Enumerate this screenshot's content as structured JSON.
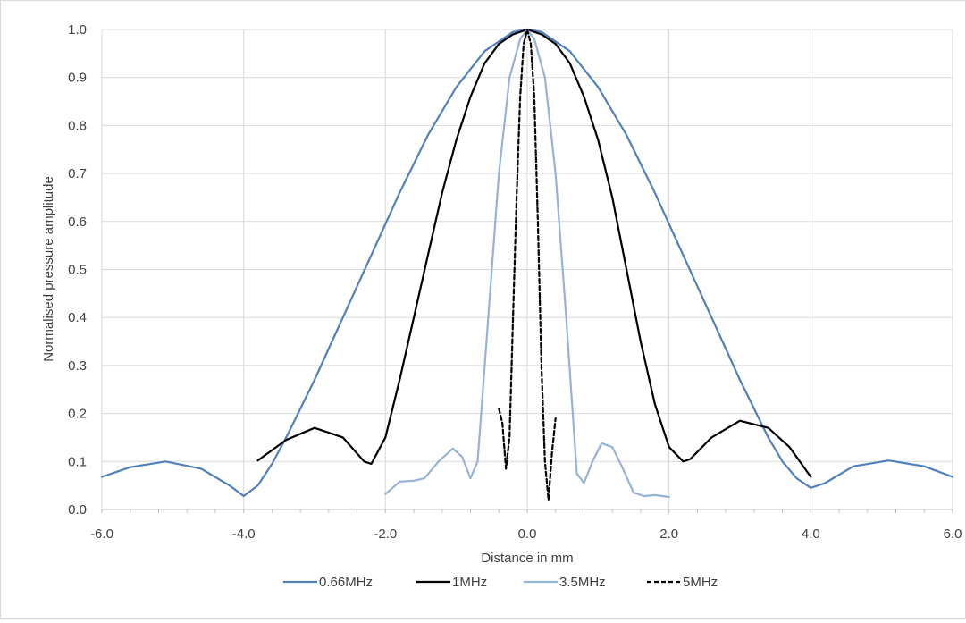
{
  "chart_data": {
    "type": "line",
    "title": "",
    "xlabel": "Distance in mm",
    "ylabel": "Normalised pressure amplitude",
    "xlim": [
      -6.0,
      6.0
    ],
    "ylim": [
      0.0,
      1.0
    ],
    "xticks": [
      "-6.0",
      "-4.0",
      "-2.0",
      "0.0",
      "2.0",
      "4.0",
      "6.0"
    ],
    "xtick_values": [
      -6,
      -4,
      -2,
      0,
      2,
      4,
      6
    ],
    "yticks": [
      "0.0",
      "0.1",
      "0.2",
      "0.3",
      "0.4",
      "0.5",
      "0.6",
      "0.7",
      "0.8",
      "0.9",
      "1.0"
    ],
    "ytick_values": [
      0,
      0.1,
      0.2,
      0.3,
      0.4,
      0.5,
      0.6,
      0.7,
      0.8,
      0.9,
      1.0
    ],
    "grid": true,
    "legend_position": "bottom",
    "series": [
      {
        "name": "0.66MHz",
        "color": "#4f81bd",
        "dash": "solid",
        "x": [
          -6.0,
          -5.6,
          -5.1,
          -4.6,
          -4.2,
          -4.0,
          -3.8,
          -3.6,
          -3.4,
          -3.0,
          -2.6,
          -2.2,
          -1.8,
          -1.4,
          -1.0,
          -0.6,
          -0.2,
          0.0,
          0.2,
          0.6,
          1.0,
          1.4,
          1.8,
          2.2,
          2.6,
          3.0,
          3.4,
          3.6,
          3.8,
          4.0,
          4.2,
          4.6,
          5.1,
          5.6,
          6.0
        ],
        "y": [
          0.068,
          0.088,
          0.1,
          0.085,
          0.05,
          0.028,
          0.05,
          0.095,
          0.15,
          0.27,
          0.4,
          0.53,
          0.66,
          0.78,
          0.88,
          0.955,
          0.995,
          1.0,
          0.995,
          0.955,
          0.88,
          0.78,
          0.66,
          0.53,
          0.4,
          0.27,
          0.15,
          0.1,
          0.065,
          0.045,
          0.055,
          0.09,
          0.102,
          0.09,
          0.068
        ]
      },
      {
        "name": "1MHz",
        "color": "#000000",
        "dash": "solid",
        "x": [
          -3.8,
          -3.4,
          -3.0,
          -2.6,
          -2.3,
          -2.2,
          -2.0,
          -1.8,
          -1.6,
          -1.4,
          -1.2,
          -1.0,
          -0.8,
          -0.6,
          -0.4,
          -0.2,
          0.0,
          0.2,
          0.4,
          0.6,
          0.8,
          1.0,
          1.2,
          1.4,
          1.6,
          1.8,
          2.0,
          2.2,
          2.3,
          2.6,
          3.0,
          3.4,
          3.7,
          4.0
        ],
        "y": [
          0.102,
          0.145,
          0.17,
          0.15,
          0.1,
          0.095,
          0.15,
          0.27,
          0.4,
          0.53,
          0.66,
          0.77,
          0.86,
          0.93,
          0.97,
          0.99,
          1.0,
          0.99,
          0.97,
          0.93,
          0.86,
          0.77,
          0.65,
          0.5,
          0.35,
          0.22,
          0.13,
          0.1,
          0.105,
          0.15,
          0.185,
          0.17,
          0.13,
          0.068
        ]
      },
      {
        "name": "3.5MHz",
        "color": "#95b3d7",
        "dash": "solid",
        "x": [
          -2.0,
          -1.8,
          -1.6,
          -1.45,
          -1.25,
          -1.05,
          -0.92,
          -0.8,
          -0.7,
          -0.55,
          -0.4,
          -0.25,
          -0.1,
          0.0,
          0.1,
          0.25,
          0.4,
          0.55,
          0.7,
          0.8,
          0.92,
          1.05,
          1.2,
          1.35,
          1.5,
          1.65,
          1.8,
          2.0
        ],
        "y": [
          0.032,
          0.058,
          0.06,
          0.065,
          0.1,
          0.127,
          0.11,
          0.065,
          0.1,
          0.4,
          0.7,
          0.9,
          0.98,
          1.0,
          0.98,
          0.9,
          0.7,
          0.4,
          0.075,
          0.055,
          0.1,
          0.138,
          0.13,
          0.085,
          0.035,
          0.028,
          0.03,
          0.026
        ]
      },
      {
        "name": "5MHz",
        "color": "#000000",
        "dash": "dashed",
        "x": [
          -0.4,
          -0.35,
          -0.3,
          -0.25,
          -0.2,
          -0.15,
          -0.1,
          -0.05,
          0.0,
          0.05,
          0.1,
          0.15,
          0.2,
          0.25,
          0.3,
          0.35,
          0.4
        ],
        "y": [
          0.21,
          0.18,
          0.085,
          0.15,
          0.4,
          0.65,
          0.86,
          0.97,
          1.0,
          0.97,
          0.86,
          0.6,
          0.3,
          0.1,
          0.02,
          0.12,
          0.19
        ]
      }
    ]
  }
}
